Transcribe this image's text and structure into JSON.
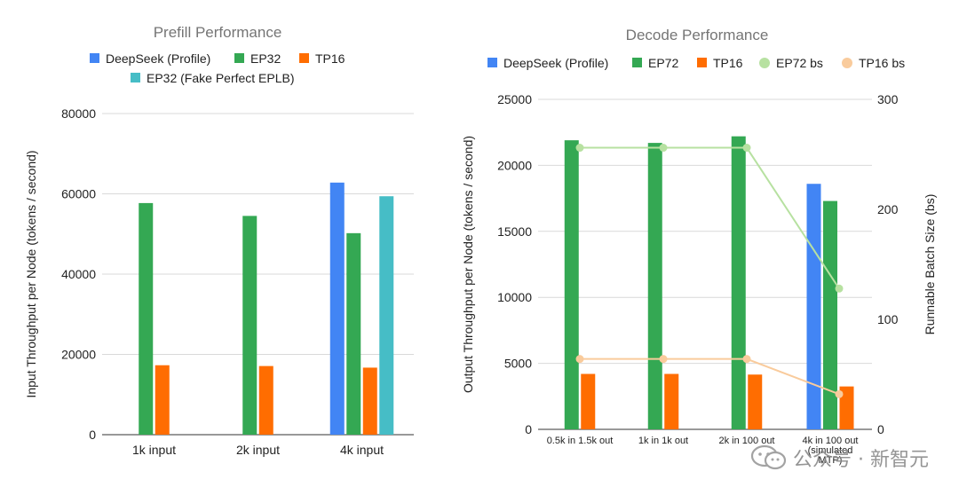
{
  "chart_data": [
    {
      "type": "bar",
      "title": "Prefill Performance",
      "ylabel": "Input Throughput per Node (tokens / second)",
      "ylim": [
        0,
        80000
      ],
      "yticks": [
        0,
        20000,
        40000,
        60000,
        80000
      ],
      "categories": [
        "1k input",
        "2k input",
        "4k input"
      ],
      "grid": true,
      "legend": "top",
      "series": [
        {
          "name": "DeepSeek (Profile)",
          "color": "#4285f4",
          "values": [
            null,
            null,
            62800
          ]
        },
        {
          "name": "EP32",
          "color": "#34a853",
          "values": [
            57700,
            54500,
            50200
          ]
        },
        {
          "name": "TP16",
          "color": "#ff6d01",
          "values": [
            17300,
            17100,
            16700
          ]
        },
        {
          "name": "EP32 (Fake Perfect EPLB)",
          "color": "#46bdc6",
          "values": [
            null,
            null,
            59400
          ]
        }
      ]
    },
    {
      "type": "bar",
      "title": "Decode Performance",
      "ylabel": "Output Throughput per Node (tokens / second)",
      "y2label": "Runnable Batch Size (bs)",
      "ylim": [
        0,
        25000
      ],
      "yticks": [
        0,
        5000,
        10000,
        15000,
        20000,
        25000
      ],
      "y2lim": [
        0,
        300
      ],
      "y2ticks": [
        0,
        100,
        200,
        300
      ],
      "categories": [
        "0.5k in 1.5k out",
        "1k in 1k out",
        "2k in 100 out",
        "4k in 100 out (simulated MTP)"
      ],
      "category_lines": [
        [
          "0.5k in 1.5k out"
        ],
        [
          "1k in 1k out"
        ],
        [
          "2k in 100 out"
        ],
        [
          "4k in 100 out",
          "(simulated",
          "MTP)"
        ]
      ],
      "grid": true,
      "legend": "top",
      "series": [
        {
          "name": "DeepSeek (Profile)",
          "color": "#4285f4",
          "values": [
            null,
            null,
            null,
            18600
          ]
        },
        {
          "name": "EP72",
          "color": "#34a853",
          "values": [
            21900,
            21700,
            22200,
            17300
          ]
        },
        {
          "name": "TP16",
          "color": "#ff6d01",
          "values": [
            4200,
            4200,
            4150,
            3250
          ]
        }
      ],
      "line_series": [
        {
          "name": "EP72 bs",
          "color": "#b7e1a1",
          "axis": "right",
          "values": [
            256,
            256,
            256,
            128
          ]
        },
        {
          "name": "TP16 bs",
          "color": "#f9cb9c",
          "axis": "right",
          "values": [
            64,
            64,
            64,
            32
          ]
        }
      ]
    }
  ],
  "watermark": {
    "text": "公众号 · 新智元"
  }
}
